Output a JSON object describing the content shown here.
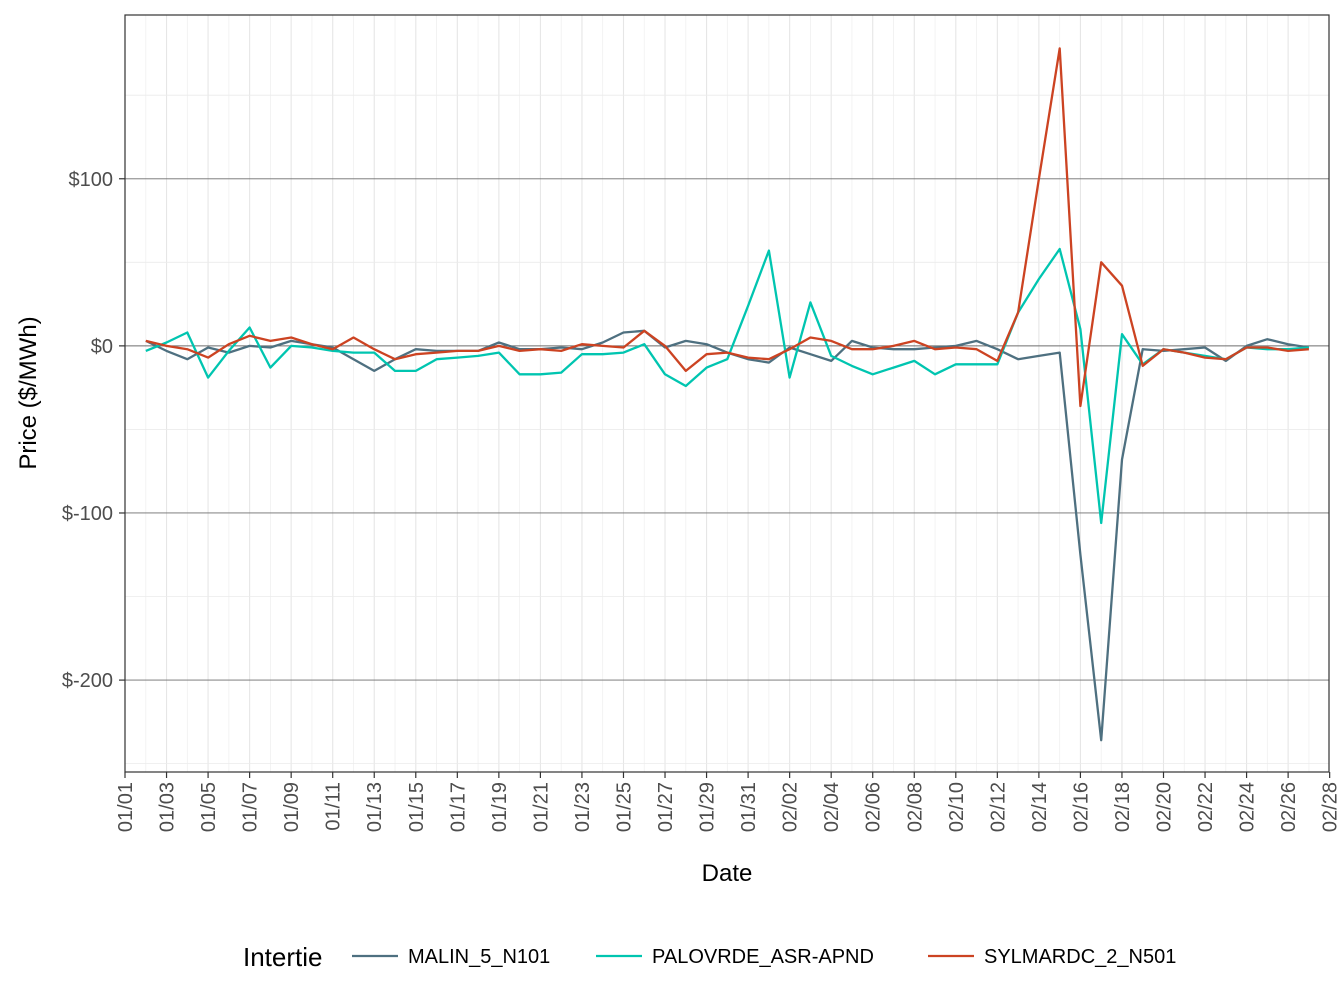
{
  "chart_data": {
    "type": "line",
    "title": "",
    "xlabel": "Date",
    "ylabel": "Price ($/MWh)",
    "x_tick_labels": [
      "01/01",
      "01/03",
      "01/05",
      "01/07",
      "01/09",
      "01/11",
      "01/13",
      "01/15",
      "01/17",
      "01/19",
      "01/21",
      "01/23",
      "01/25",
      "01/27",
      "01/29",
      "01/31",
      "02/02",
      "02/04",
      "02/06",
      "02/08",
      "02/10",
      "02/12",
      "02/14",
      "02/16",
      "02/18",
      "02/20",
      "02/22",
      "02/24",
      "02/26",
      "02/28"
    ],
    "y_tick_labels": [
      "$100",
      "$0",
      "$-100",
      "$-200"
    ],
    "y_tick_values": [
      100,
      0,
      -100,
      -200
    ],
    "ylim": [
      -255,
      198
    ],
    "xlim": [
      "01/01",
      "02/28"
    ],
    "grid": true,
    "legend": {
      "title": "Intertie",
      "position": "bottom"
    },
    "x": [
      "01/02",
      "01/03",
      "01/04",
      "01/05",
      "01/06",
      "01/07",
      "01/08",
      "01/09",
      "01/10",
      "01/11",
      "01/12",
      "01/13",
      "01/14",
      "01/15",
      "01/16",
      "01/17",
      "01/18",
      "01/19",
      "01/20",
      "01/21",
      "01/22",
      "01/23",
      "01/24",
      "01/25",
      "01/26",
      "01/27",
      "01/28",
      "01/29",
      "01/30",
      "01/31",
      "02/01",
      "02/02",
      "02/03",
      "02/04",
      "02/05",
      "02/06",
      "02/07",
      "02/08",
      "02/09",
      "02/10",
      "02/11",
      "02/12",
      "02/13",
      "02/14",
      "02/15",
      "02/16",
      "02/17",
      "02/18",
      "02/19",
      "02/20",
      "02/21",
      "02/22",
      "02/23",
      "02/24",
      "02/25",
      "02/26",
      "02/27"
    ],
    "series": [
      {
        "name": "MALIN_5_N101",
        "color": "#4e7080",
        "values": [
          3,
          -3,
          -8,
          -1,
          -4,
          0,
          -1,
          3,
          1,
          -1,
          -8,
          -15,
          -8,
          -2,
          -3,
          -3,
          -3,
          2,
          -2,
          -2,
          -1,
          -2,
          2,
          8,
          9,
          -1,
          3,
          1,
          -4,
          -8,
          -10,
          -1,
          -5,
          -9,
          3,
          -1,
          -2,
          -2,
          -1,
          0,
          3,
          -2,
          -8,
          -6,
          -4,
          -125,
          -236,
          -68,
          -2,
          -3,
          -2,
          -1,
          -9,
          0,
          4,
          1,
          -1
        ]
      },
      {
        "name": "PALOVRDE_ASR-APND",
        "color": "#00c5b0",
        "values": [
          -3,
          2,
          8,
          -19,
          -3,
          11,
          -13,
          0,
          -1,
          -3,
          -4,
          -4,
          -15,
          -15,
          -8,
          -7,
          -6,
          -4,
          -17,
          -17,
          -16,
          -5,
          -5,
          -4,
          1,
          -17,
          -24,
          -13,
          -8,
          24,
          57,
          -19,
          26,
          -6,
          -12,
          -17,
          -13,
          -9,
          -17,
          -11,
          -11,
          -11,
          20,
          40,
          58,
          10,
          -106,
          7,
          -11,
          -2,
          -4,
          -6,
          -8,
          -1,
          -2,
          -2,
          -1
        ]
      },
      {
        "name": "SYLMARDC_2_N501",
        "color": "#cc4322",
        "values": [
          3,
          0,
          -2,
          -7,
          1,
          6,
          3,
          5,
          1,
          -2,
          5,
          -2,
          -8,
          -5,
          -4,
          -3,
          -3,
          0,
          -3,
          -2,
          -3,
          1,
          0,
          -1,
          9,
          0,
          -15,
          -5,
          -4,
          -7,
          -8,
          -2,
          5,
          3,
          -2,
          -2,
          0,
          3,
          -2,
          -1,
          -2,
          -9,
          20,
          100,
          178,
          -36,
          50,
          36,
          -12,
          -2,
          -4,
          -7,
          -8,
          -1,
          -1,
          -3,
          -2
        ]
      }
    ]
  }
}
